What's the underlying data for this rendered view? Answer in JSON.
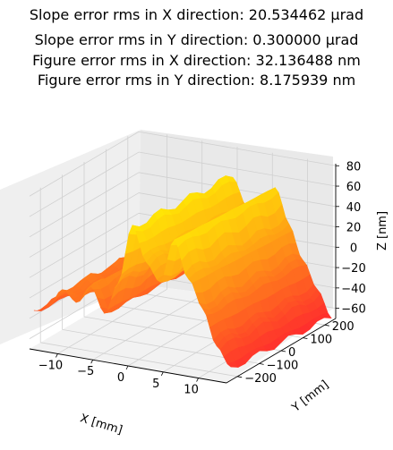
{
  "chart_data": {
    "type": "surface",
    "title_lines": [
      "Slope error rms in X direction: 20.534462 μrad",
      "Slope error rms in Y direction: 0.300000 μrad",
      "Figure error rms in X direction: 32.136488 nm",
      "Figure error rms in Y direction: 8.175939 nm"
    ],
    "xlabel": "X [mm]",
    "ylabel": "Y [mm]",
    "zlabel": "Z [nm]",
    "xlim": [
      -14,
      14
    ],
    "ylim": [
      -250,
      250
    ],
    "zlim": [
      -70,
      82
    ],
    "xticks": [
      "−10",
      "−5",
      "0",
      "5",
      "10"
    ],
    "yticks": [
      "−200",
      "−100",
      "0",
      "100",
      "200"
    ],
    "zticks": [
      "80",
      "60",
      "40",
      "20",
      "0",
      "−20",
      "−40",
      "−60"
    ],
    "colormap": "autumn",
    "grid": true,
    "x": [
      -14,
      -12,
      -10,
      -8,
      -6,
      -4,
      -2,
      0,
      2,
      4,
      6,
      8,
      10,
      12,
      14
    ],
    "profile_z": [
      -40,
      -30,
      -15,
      -22,
      -5,
      -30,
      5,
      60,
      30,
      10,
      55,
      20,
      -10,
      -40,
      -62
    ]
  }
}
